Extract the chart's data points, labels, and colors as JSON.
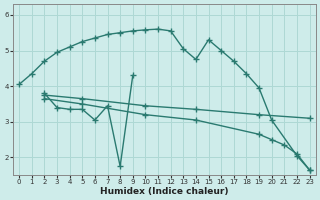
{
  "xlabel": "Humidex (Indice chaleur)",
  "bg_color": "#ceecea",
  "grid_color": "#aed8d4",
  "line_color": "#2a7a70",
  "xlim": [
    -0.5,
    23.5
  ],
  "ylim": [
    1.5,
    6.3
  ],
  "xticks": [
    0,
    1,
    2,
    3,
    4,
    5,
    6,
    7,
    8,
    9,
    10,
    11,
    12,
    13,
    14,
    15,
    16,
    17,
    18,
    19,
    20,
    21,
    22,
    23
  ],
  "yticks": [
    2,
    3,
    4,
    5,
    6
  ],
  "line1_x": [
    0,
    1,
    2,
    3,
    4,
    5,
    6,
    7,
    8,
    9,
    10,
    11,
    12,
    13,
    14,
    15,
    16,
    17,
    18,
    19,
    20,
    22,
    23
  ],
  "line1_y": [
    4.05,
    4.35,
    4.7,
    4.95,
    5.1,
    5.25,
    5.35,
    5.45,
    5.5,
    5.55,
    5.58,
    5.6,
    5.55,
    5.05,
    4.75,
    5.3,
    5.0,
    4.7,
    4.35,
    3.95,
    3.05,
    2.05,
    1.65
  ],
  "line2_x": [
    2,
    3,
    4,
    5,
    6,
    7,
    8,
    9
  ],
  "line2_y": [
    3.8,
    3.4,
    3.35,
    3.35,
    3.05,
    3.45,
    1.75,
    4.3
  ],
  "line3_x": [
    2,
    5,
    10,
    14,
    19,
    23
  ],
  "line3_y": [
    3.75,
    3.65,
    3.45,
    3.35,
    3.2,
    3.1
  ],
  "line4_x": [
    2,
    5,
    10,
    14,
    19,
    20,
    21,
    22,
    23
  ],
  "line4_y": [
    3.65,
    3.5,
    3.2,
    3.05,
    2.65,
    2.5,
    2.35,
    2.1,
    1.65
  ]
}
